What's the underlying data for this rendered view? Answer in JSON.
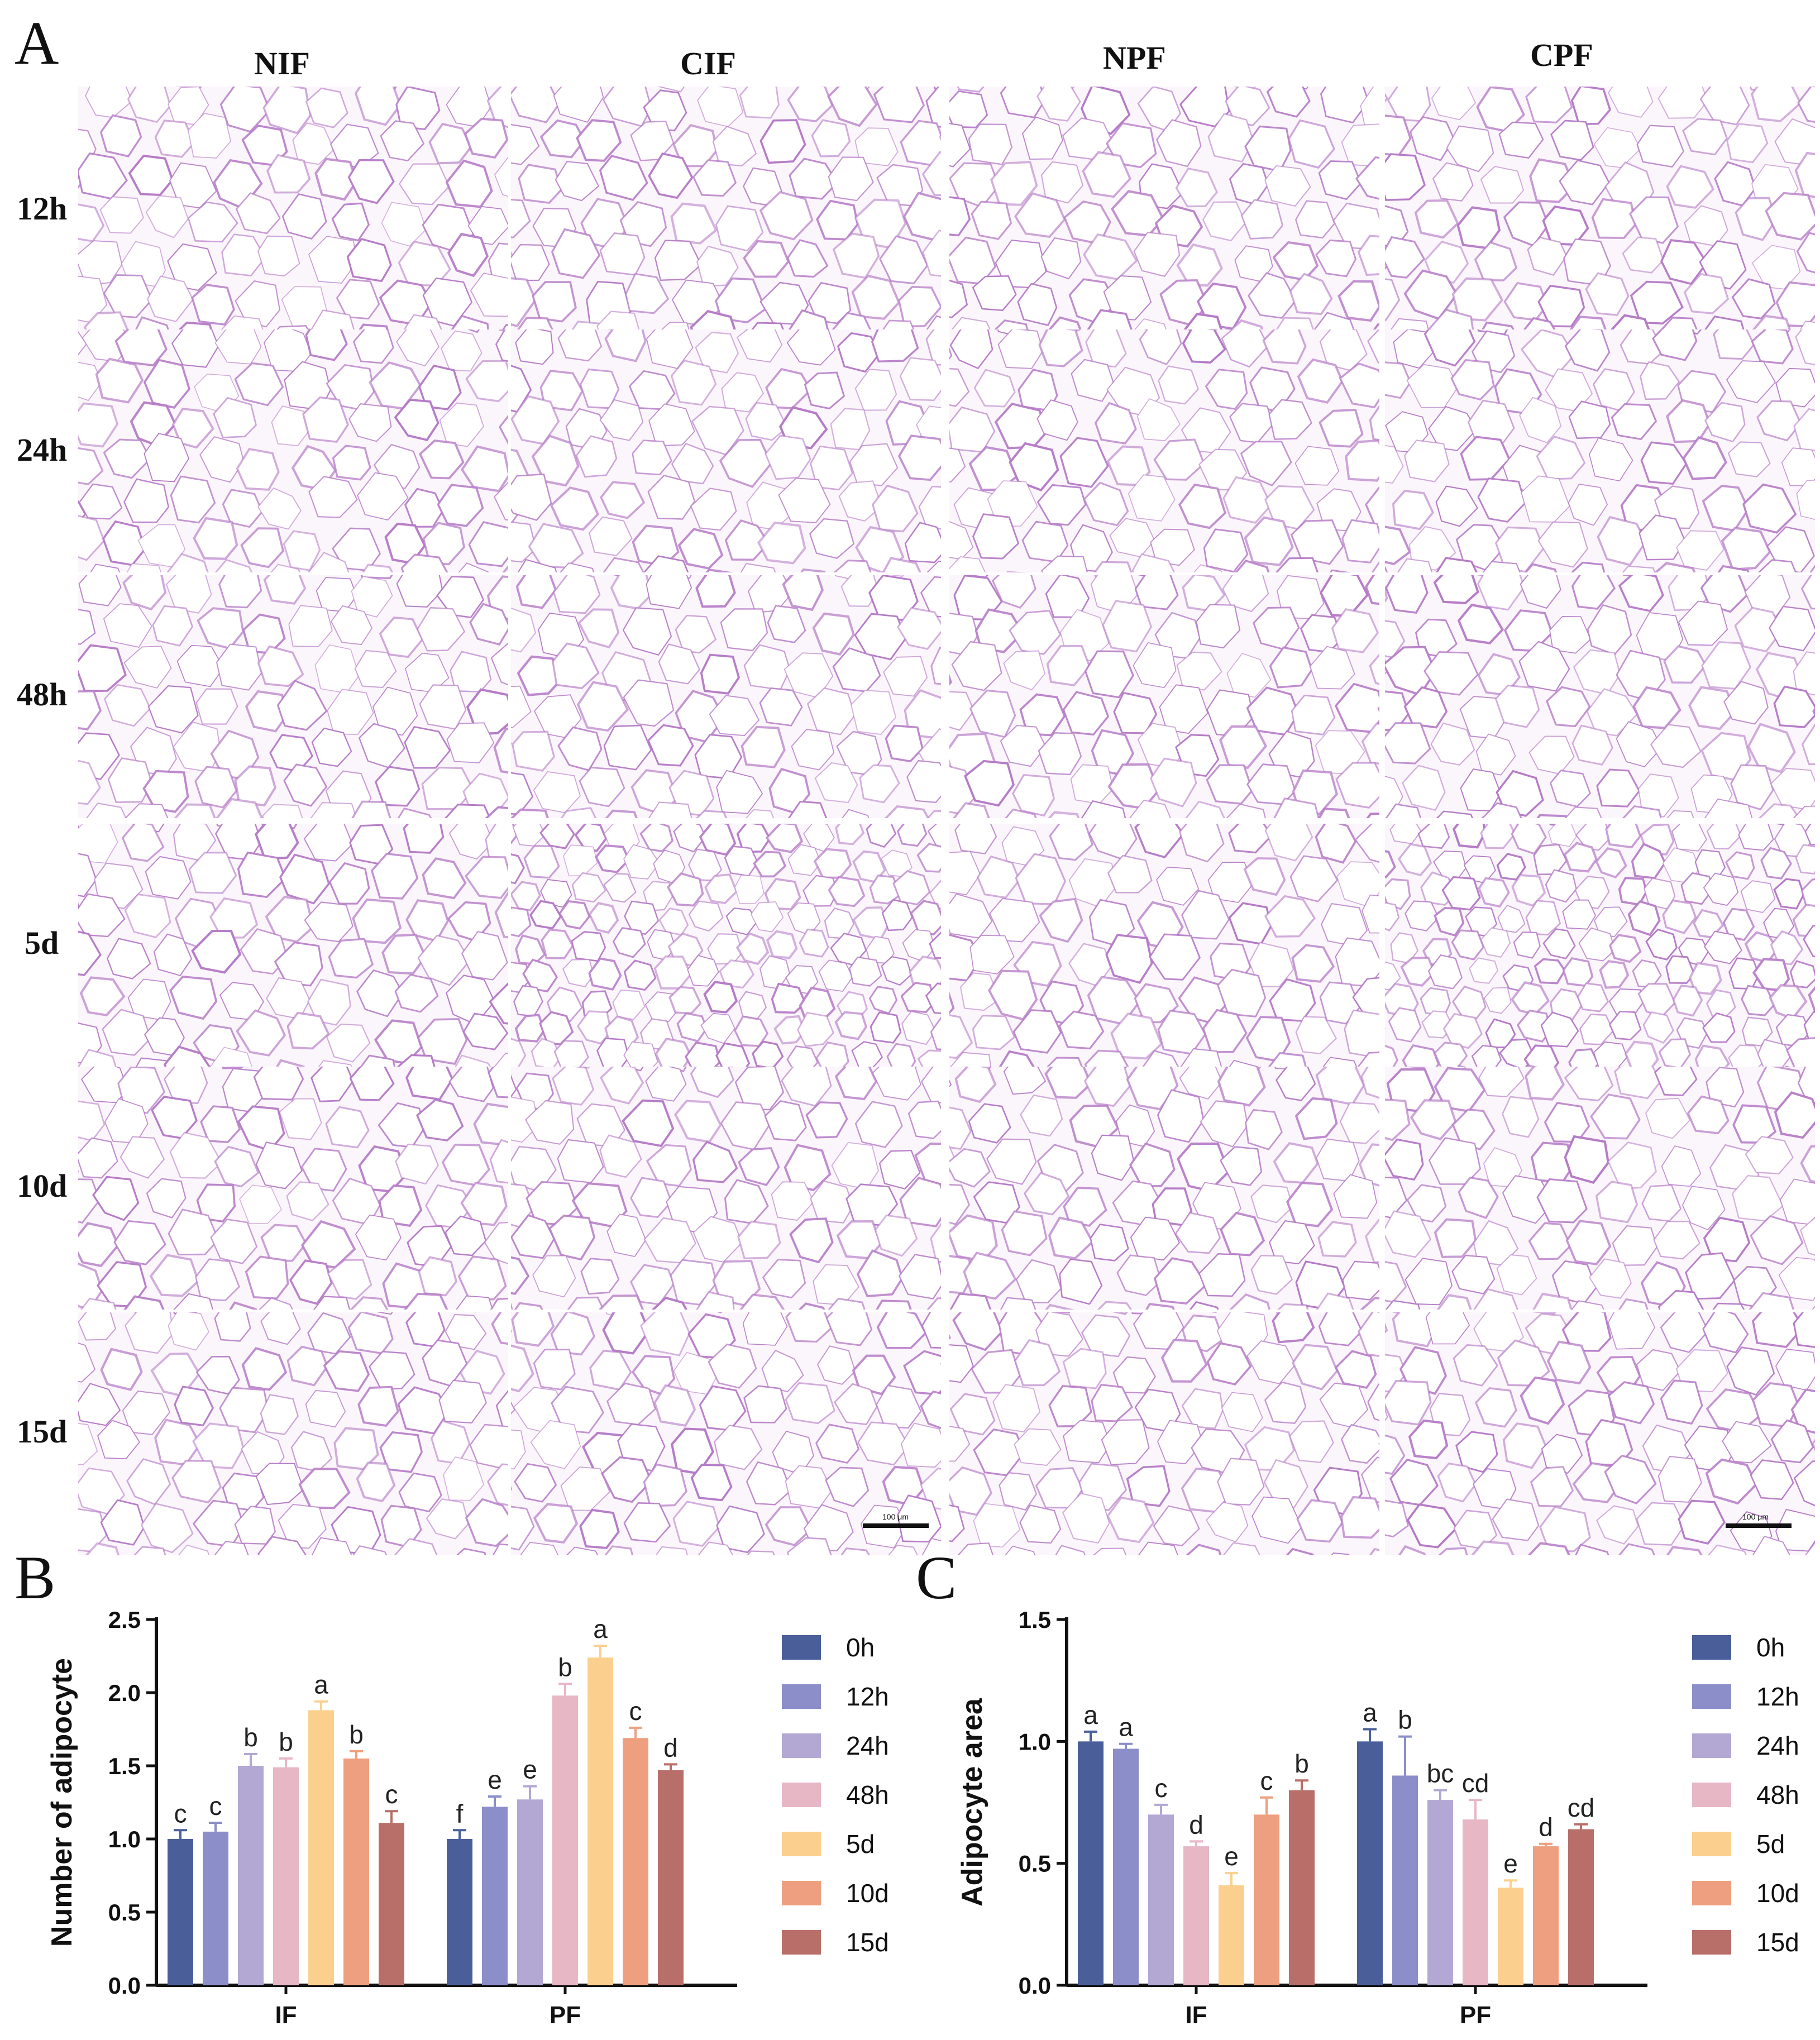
{
  "figure": {
    "panels": {
      "A": "A",
      "B": "B",
      "C": "C"
    },
    "grid": {
      "columns": [
        "NIF",
        "CIF",
        "NPF",
        "CPF"
      ],
      "rows": [
        "12h",
        "24h",
        "48h",
        "5d",
        "10d",
        "15d"
      ],
      "scale_bar_text": "100 μm",
      "stain_color": "#b57ac6"
    }
  },
  "chart_data": [
    {
      "type": "bar",
      "panel": "B",
      "ylabel": "Number of adipocyte",
      "xlabel": "",
      "categories": [
        "IF",
        "PF"
      ],
      "ylim": [
        0,
        2.5
      ],
      "yticks": [
        "0.0",
        "0.5",
        "1.0",
        "1.5",
        "2.0",
        "2.5"
      ],
      "legend_position": "right",
      "series": [
        {
          "name": "0h",
          "color": "#4a5f9a",
          "values": [
            1.0,
            1.0
          ],
          "errors": [
            0.06,
            0.06
          ],
          "letters": [
            "c",
            "f"
          ]
        },
        {
          "name": "12h",
          "color": "#8b8ec8",
          "values": [
            1.05,
            1.22
          ],
          "errors": [
            0.06,
            0.07
          ],
          "letters": [
            "c",
            "e"
          ]
        },
        {
          "name": "24h",
          "color": "#b3a8d4",
          "values": [
            1.5,
            1.27
          ],
          "errors": [
            0.08,
            0.09
          ],
          "letters": [
            "b",
            "e"
          ]
        },
        {
          "name": "48h",
          "color": "#e7b7c6",
          "values": [
            1.49,
            1.98
          ],
          "errors": [
            0.06,
            0.08
          ],
          "letters": [
            "b",
            "b"
          ]
        },
        {
          "name": "5d",
          "color": "#fbd08e",
          "values": [
            1.88,
            2.24
          ],
          "errors": [
            0.06,
            0.08
          ],
          "letters": [
            "a",
            "a"
          ]
        },
        {
          "name": "10d",
          "color": "#ee9f7f",
          "values": [
            1.55,
            1.69
          ],
          "errors": [
            0.05,
            0.07
          ],
          "letters": [
            "b",
            "c"
          ]
        },
        {
          "name": "15d",
          "color": "#b86f69",
          "values": [
            1.11,
            1.47
          ],
          "errors": [
            0.08,
            0.04
          ],
          "letters": [
            "c",
            "d"
          ]
        }
      ]
    },
    {
      "type": "bar",
      "panel": "C",
      "ylabel": "Adipocyte area",
      "xlabel": "",
      "categories": [
        "IF",
        "PF"
      ],
      "ylim": [
        0,
        1.5
      ],
      "yticks": [
        "0.0",
        "0.5",
        "1.0",
        "1.5"
      ],
      "legend_position": "right",
      "series": [
        {
          "name": "0h",
          "color": "#4a5f9a",
          "values": [
            1.0,
            1.0
          ],
          "errors": [
            0.04,
            0.05
          ],
          "letters": [
            "a",
            "a"
          ]
        },
        {
          "name": "12h",
          "color": "#8b8ec8",
          "values": [
            0.97,
            0.86
          ],
          "errors": [
            0.02,
            0.16
          ],
          "letters": [
            "a",
            "b"
          ]
        },
        {
          "name": "24h",
          "color": "#b3a8d4",
          "values": [
            0.7,
            0.76
          ],
          "errors": [
            0.04,
            0.04
          ],
          "letters": [
            "c",
            "bc"
          ]
        },
        {
          "name": "48h",
          "color": "#e7b7c6",
          "values": [
            0.57,
            0.68
          ],
          "errors": [
            0.02,
            0.08
          ],
          "letters": [
            "d",
            "cd"
          ]
        },
        {
          "name": "5d",
          "color": "#fbd08e",
          "values": [
            0.41,
            0.4
          ],
          "errors": [
            0.05,
            0.03
          ],
          "letters": [
            "e",
            "e"
          ]
        },
        {
          "name": "10d",
          "color": "#ee9f7f",
          "values": [
            0.7,
            0.57
          ],
          "errors": [
            0.07,
            0.01
          ],
          "letters": [
            "c",
            "d"
          ]
        },
        {
          "name": "15d",
          "color": "#b86f69",
          "values": [
            0.8,
            0.64
          ],
          "errors": [
            0.04,
            0.02
          ],
          "letters": [
            "b",
            "cd"
          ]
        }
      ]
    }
  ]
}
